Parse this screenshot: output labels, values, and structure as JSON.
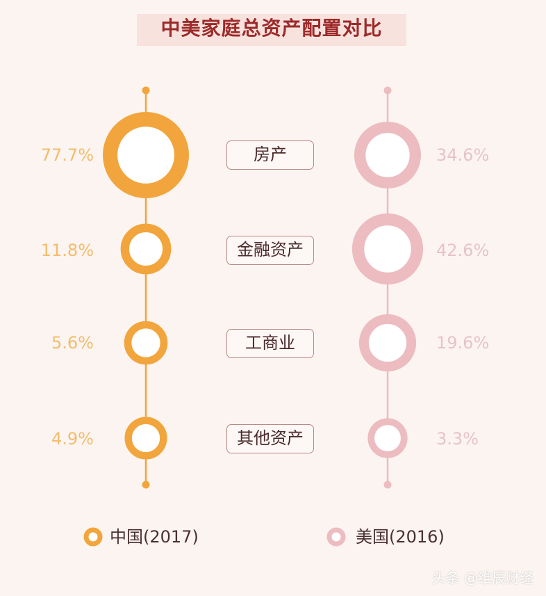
{
  "title": "中美家庭总资产配置对比",
  "colors": {
    "china": "#f2a53c",
    "usa": "#ecbcc0",
    "background": "#fcf4f1",
    "title": "#9c2a2a",
    "box_border": "#b98683"
  },
  "chart_data": {
    "type": "bubble-comparison",
    "categories": [
      "房产",
      "金融资产",
      "工商业",
      "其他资产"
    ],
    "series": [
      {
        "name": "中国(2017)",
        "values": [
          77.7,
          11.8,
          5.6,
          4.9
        ],
        "labels": [
          "77.7%",
          "11.8%",
          "5.6%",
          "4.9%"
        ]
      },
      {
        "name": "美国(2016)",
        "values": [
          34.6,
          42.6,
          19.6,
          3.3
        ],
        "labels": [
          "34.6%",
          "42.6%",
          "19.6%",
          "3.3%"
        ]
      }
    ],
    "unit": "%"
  },
  "legend": {
    "china": "中国(2017)",
    "usa": "美国(2016)"
  },
  "watermark": "头条 @维辰财经"
}
